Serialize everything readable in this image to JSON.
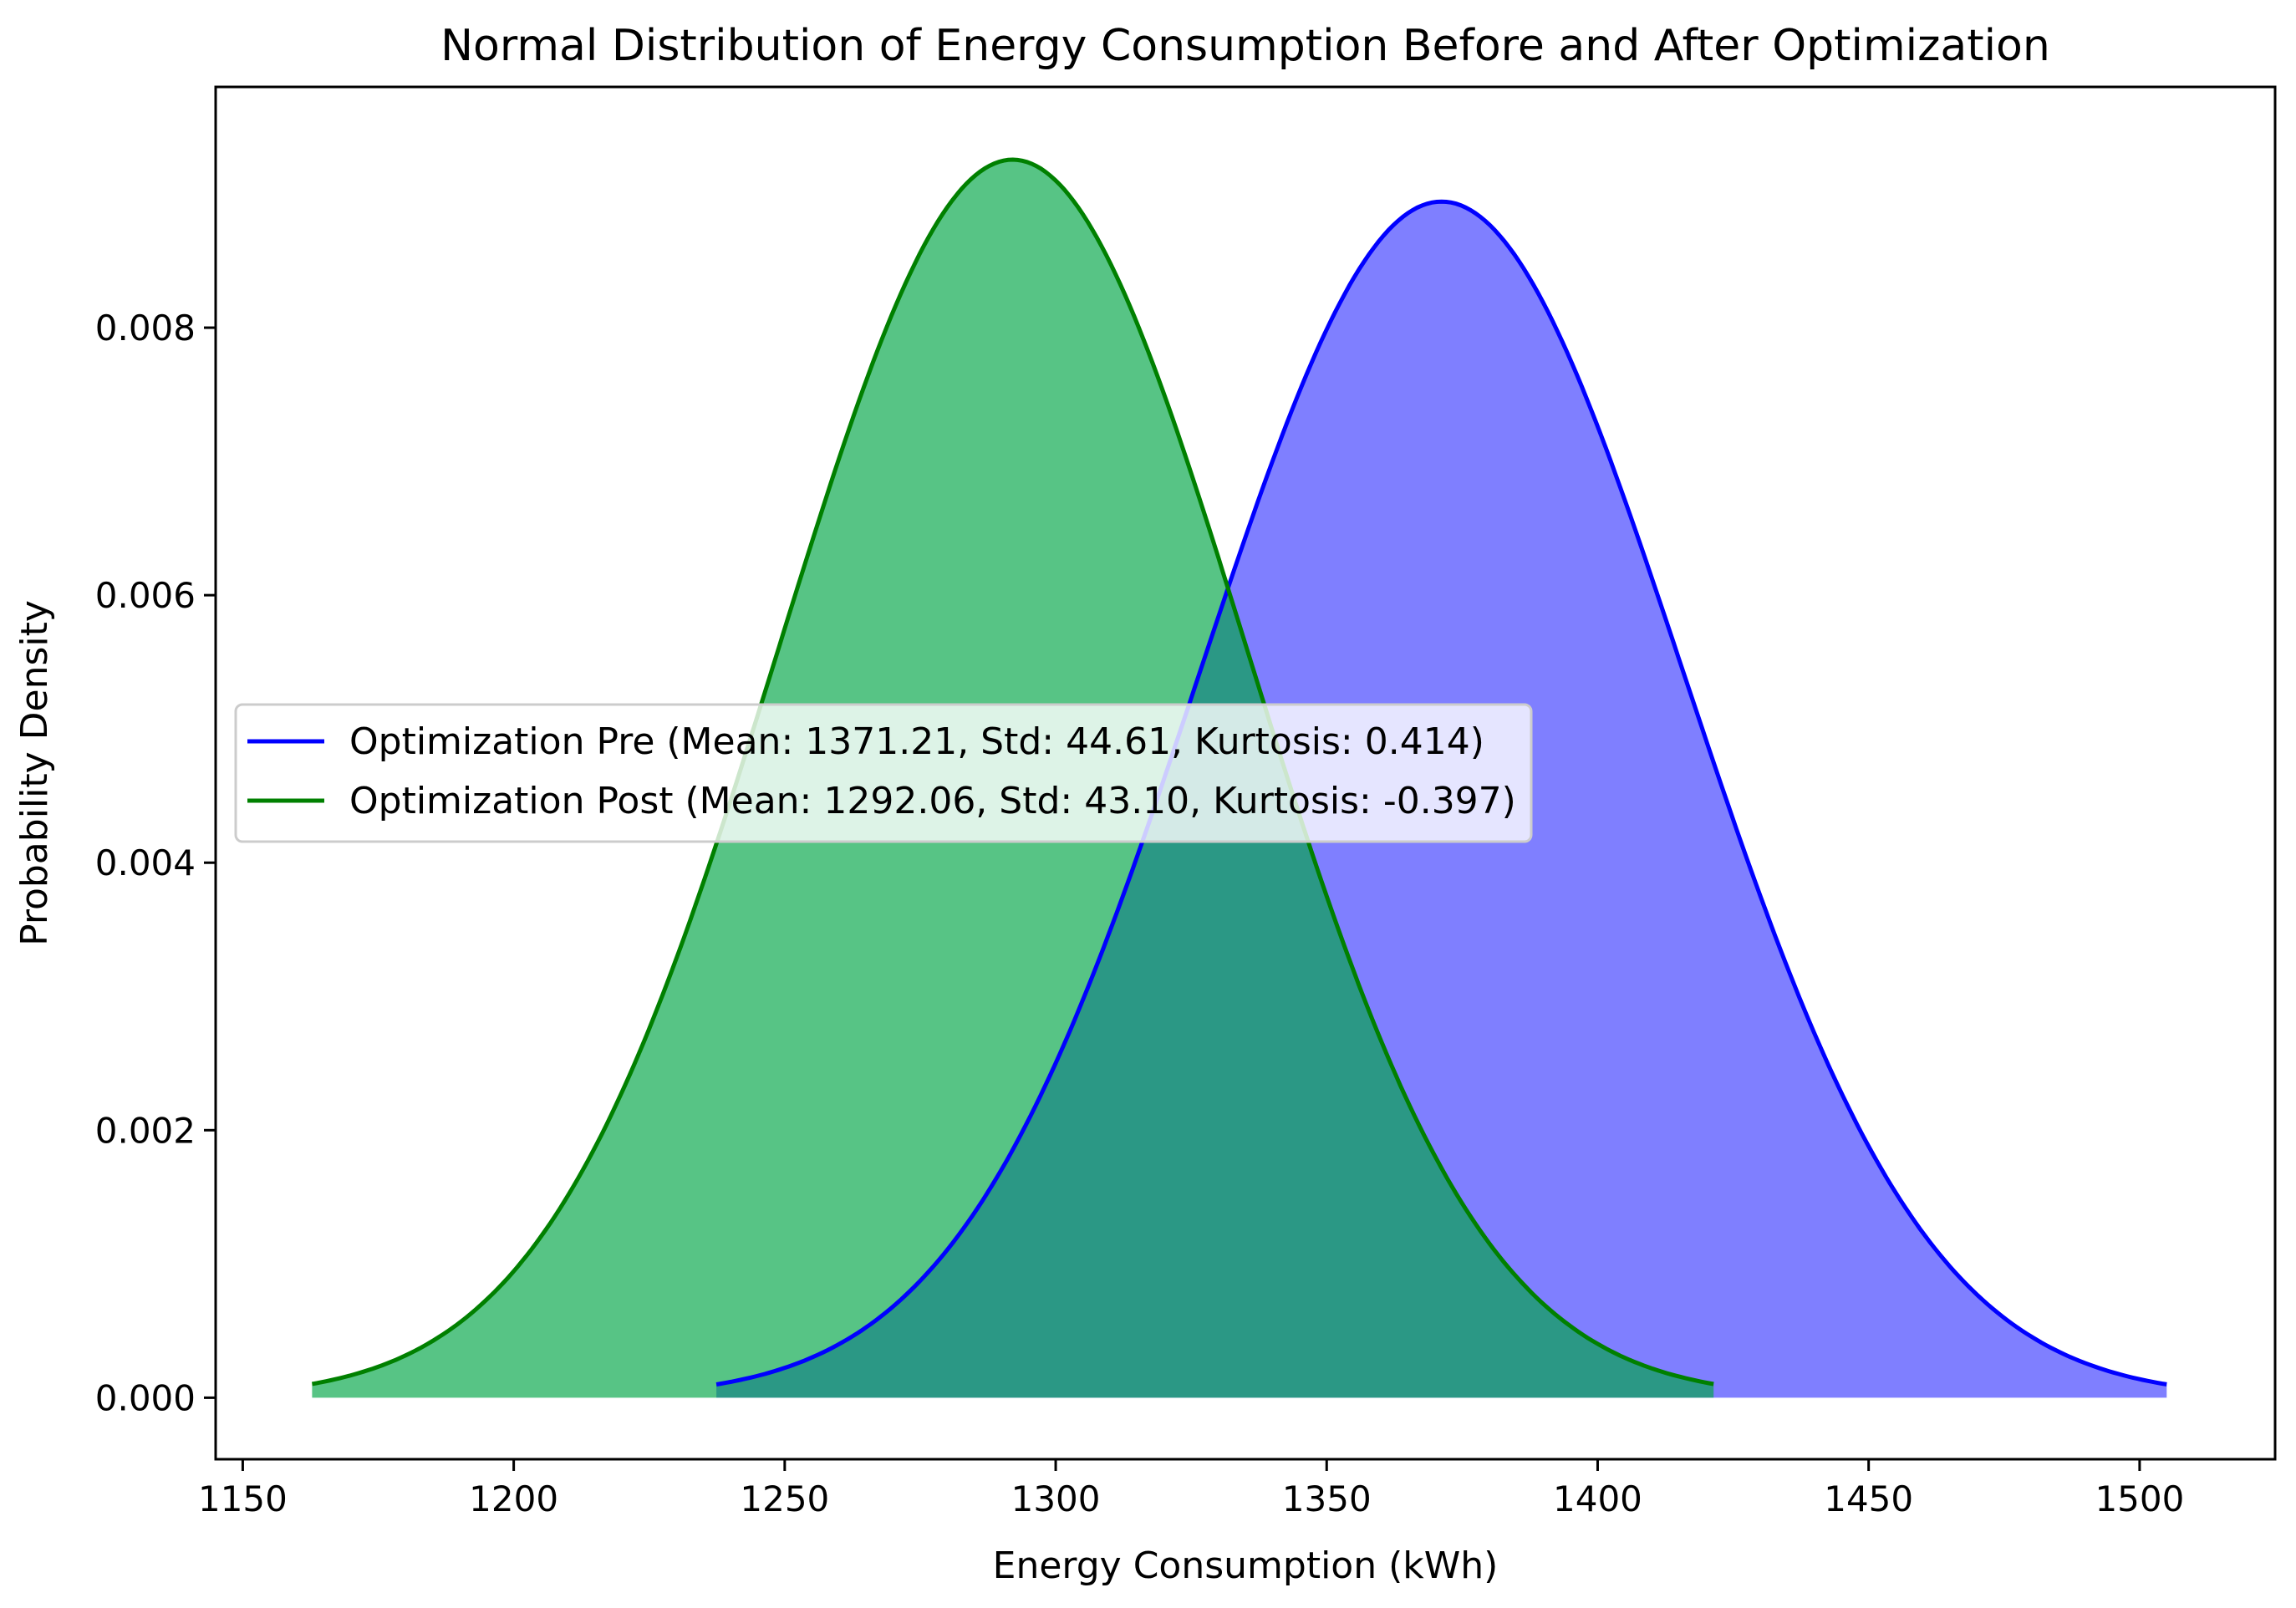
{
  "chart_data": {
    "type": "area",
    "title": "Normal Distribution of Energy Consumption Before and After Optimization",
    "xlabel": "Energy Consumption (kWh)",
    "ylabel": "Probability Density",
    "xlim": [
      1145,
      1525
    ],
    "ylim": [
      -0.00046,
      0.0098
    ],
    "xticks": [
      1150,
      1200,
      1250,
      1300,
      1350,
      1400,
      1450,
      1500
    ],
    "xtick_labels": [
      "1150",
      "1200",
      "1250",
      "1300",
      "1350",
      "1400",
      "1450",
      "1500"
    ],
    "yticks": [
      0.0,
      0.002,
      0.004,
      0.006,
      0.008
    ],
    "ytick_labels": [
      "0.000",
      "0.002",
      "0.004",
      "0.006",
      "0.008"
    ],
    "grid": false,
    "legend_position": "center-left",
    "series": [
      {
        "name": "Optimization Pre (Mean: 1371.21, Std: 44.61, Kurtosis: 0.414)",
        "mean": 1371.21,
        "std": 44.61,
        "kurtosis": 0.414,
        "x_range": [
          1237.4,
          1505.0
        ],
        "line_color": "#0000ff",
        "fill_color": "#0000ff",
        "fill_opacity": 0.5
      },
      {
        "name": "Optimization Post (Mean: 1292.06, Std: 43.10, Kurtosis: -0.397)",
        "mean": 1292.06,
        "std": 43.1,
        "kurtosis": -0.397,
        "x_range": [
          1162.8,
          1421.4
        ],
        "line_color": "#008000",
        "fill_color": "#00a646",
        "fill_opacity": 0.66
      }
    ]
  }
}
